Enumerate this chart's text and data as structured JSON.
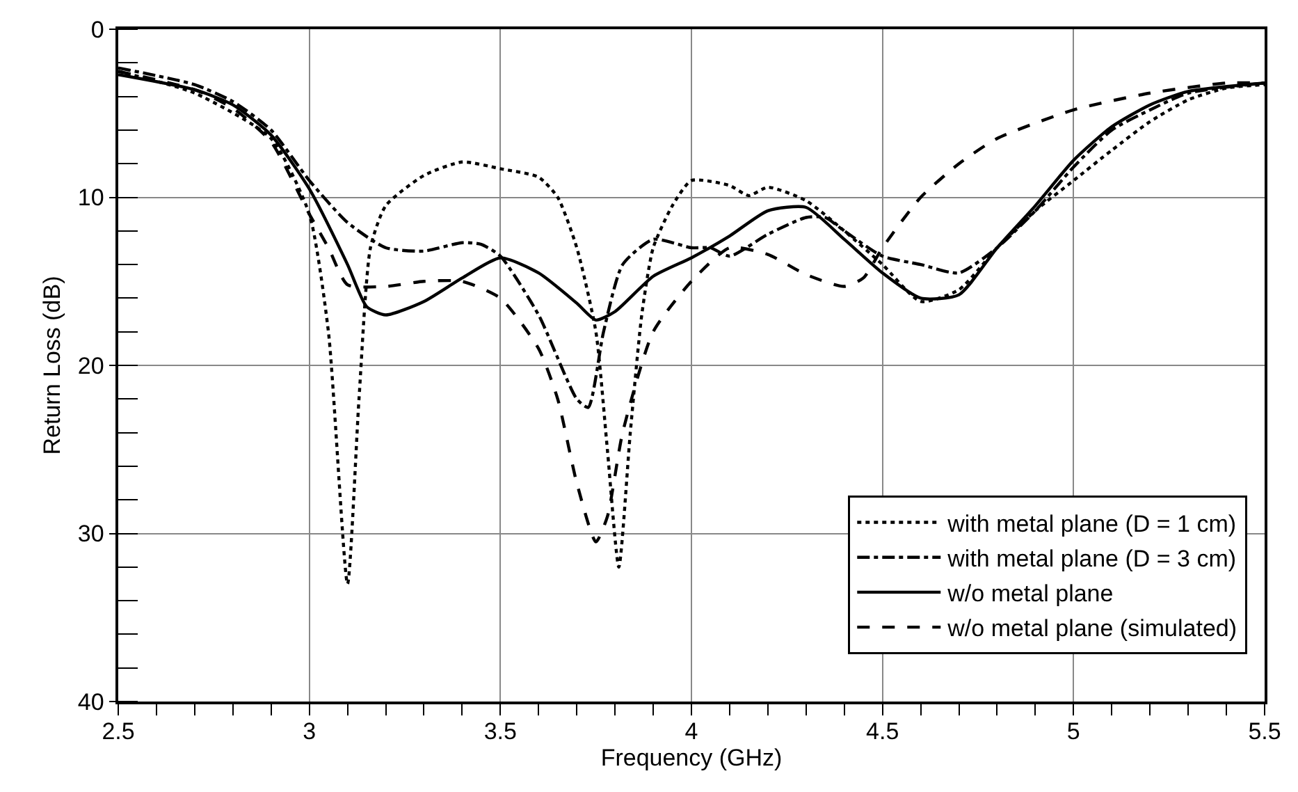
{
  "chart_data": {
    "type": "line",
    "xlabel": "Frequency (GHz)",
    "ylabel": "Return Loss (dB)",
    "xlim": [
      2.5,
      5.5
    ],
    "xticks": [
      2.5,
      3,
      3.5,
      4,
      4.5,
      5,
      5.5
    ],
    "ylim": [
      40,
      0
    ],
    "yticks": [
      0,
      10,
      20,
      30,
      40
    ],
    "grid": true,
    "legend": "bottom right",
    "marker": "none",
    "series": [
      {
        "name": "with metal plane (D = 1 cm)",
        "color": "#000000",
        "line_style": "dotted",
        "x": [
          2.5,
          2.7,
          2.9,
          3.0,
          3.05,
          3.1,
          3.13,
          3.16,
          3.2,
          3.3,
          3.4,
          3.5,
          3.6,
          3.65,
          3.7,
          3.75,
          3.78,
          3.81,
          3.84,
          3.87,
          3.9,
          3.95,
          4.0,
          4.1,
          4.15,
          4.2,
          4.3,
          4.4,
          4.5,
          4.6,
          4.7,
          4.8,
          4.9,
          5.0,
          5.1,
          5.2,
          5.3,
          5.4,
          5.5
        ],
        "values": [
          2.5,
          3.8,
          6.5,
          11,
          18,
          33,
          22,
          13,
          10.5,
          8.7,
          7.9,
          8.3,
          8.8,
          10,
          13,
          18,
          25,
          32,
          24,
          17,
          13,
          10.5,
          9,
          9.3,
          9.9,
          9.4,
          10.2,
          12,
          14,
          16.2,
          15.5,
          13,
          10.8,
          9,
          7.2,
          5.5,
          4.2,
          3.5,
          3.3
        ]
      },
      {
        "name": "with metal plane (D = 3 cm)",
        "color": "#000000",
        "line_style": "dashdot",
        "x": [
          2.5,
          2.7,
          2.8,
          2.9,
          3.0,
          3.1,
          3.2,
          3.3,
          3.4,
          3.45,
          3.5,
          3.6,
          3.7,
          3.73,
          3.77,
          3.82,
          3.9,
          4.0,
          4.05,
          4.1,
          4.2,
          4.3,
          4.35,
          4.4,
          4.5,
          4.6,
          4.7,
          4.8,
          4.9,
          5.0,
          5.1,
          5.2,
          5.3,
          5.5
        ],
        "values": [
          2.3,
          3.3,
          4.3,
          6,
          9,
          11.5,
          13,
          13.2,
          12.7,
          12.8,
          13.5,
          17,
          22,
          22.5,
          18,
          14,
          12.5,
          13,
          13,
          13.5,
          12.2,
          11.2,
          11.2,
          12,
          13.5,
          14,
          14.5,
          13,
          10.8,
          8.2,
          6,
          4.8,
          3.8,
          3.2
        ]
      },
      {
        "name": "w/o metal plane",
        "color": "#000000",
        "line_style": "solid",
        "x": [
          2.5,
          2.7,
          2.8,
          2.9,
          3.0,
          3.1,
          3.15,
          3.2,
          3.3,
          3.4,
          3.5,
          3.6,
          3.7,
          3.75,
          3.8,
          3.9,
          4.0,
          4.1,
          4.2,
          4.3,
          4.4,
          4.5,
          4.6,
          4.7,
          4.8,
          4.9,
          5.0,
          5.1,
          5.2,
          5.3,
          5.5
        ],
        "values": [
          2.7,
          3.6,
          4.5,
          6.3,
          9.5,
          14,
          16.5,
          17,
          16.2,
          14.8,
          13.6,
          14.5,
          16.3,
          17.3,
          16.8,
          14.7,
          13.6,
          12.3,
          10.8,
          10.6,
          12.5,
          14.5,
          16,
          15.8,
          13,
          10.5,
          7.8,
          5.8,
          4.5,
          3.7,
          3.2
        ]
      },
      {
        "name": "w/o metal plane (simulated)",
        "color": "#000000",
        "line_style": "dashed",
        "x": [
          2.5,
          2.7,
          2.8,
          2.9,
          3.0,
          3.05,
          3.1,
          3.2,
          3.3,
          3.4,
          3.5,
          3.6,
          3.65,
          3.7,
          3.75,
          3.78,
          3.82,
          3.9,
          4.0,
          4.1,
          4.2,
          4.3,
          4.4,
          4.45,
          4.5,
          4.6,
          4.7,
          4.8,
          5.0,
          5.2,
          5.4,
          5.5
        ],
        "values": [
          2.5,
          3.6,
          4.7,
          6.7,
          11,
          13,
          15.2,
          15.3,
          15,
          15,
          16,
          19,
          22,
          27,
          30.5,
          29,
          24,
          18,
          15,
          13,
          13.4,
          14.6,
          15.3,
          14.8,
          13,
          10,
          8,
          6.5,
          4.8,
          3.8,
          3.2,
          3.2
        ]
      }
    ]
  }
}
